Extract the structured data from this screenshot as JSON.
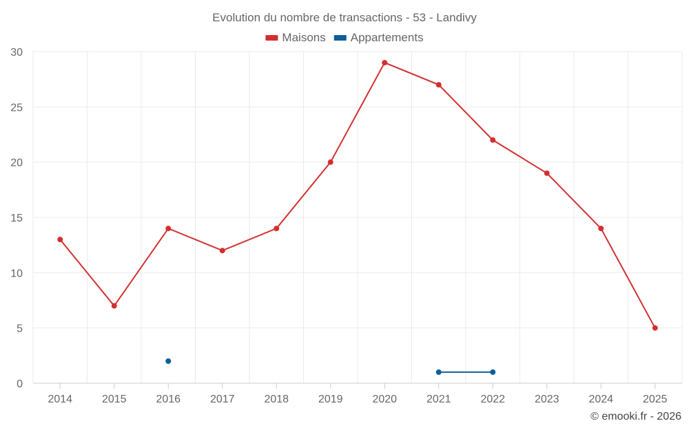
{
  "chart_data": {
    "type": "line",
    "title": "Evolution du nombre de transactions - 53 - Landivy",
    "categories": [
      "2014",
      "2015",
      "2016",
      "2017",
      "2018",
      "2019",
      "2020",
      "2021",
      "2022",
      "2023",
      "2024",
      "2025"
    ],
    "ylim": [
      0,
      30
    ],
    "yticks": [
      0,
      5,
      10,
      15,
      20,
      25,
      30
    ],
    "grid": true,
    "legend_position": "top-center",
    "series": [
      {
        "name": "Maisons",
        "color": "#d32f2f",
        "values": [
          13,
          7,
          14,
          12,
          14,
          20,
          29,
          27,
          22,
          19,
          14,
          5
        ]
      },
      {
        "name": "Appartements",
        "color": "#0d5f97",
        "values": [
          null,
          null,
          2,
          null,
          null,
          null,
          null,
          1,
          1,
          null,
          null,
          null
        ]
      }
    ],
    "credit": "© emooki.fr - 2026"
  }
}
